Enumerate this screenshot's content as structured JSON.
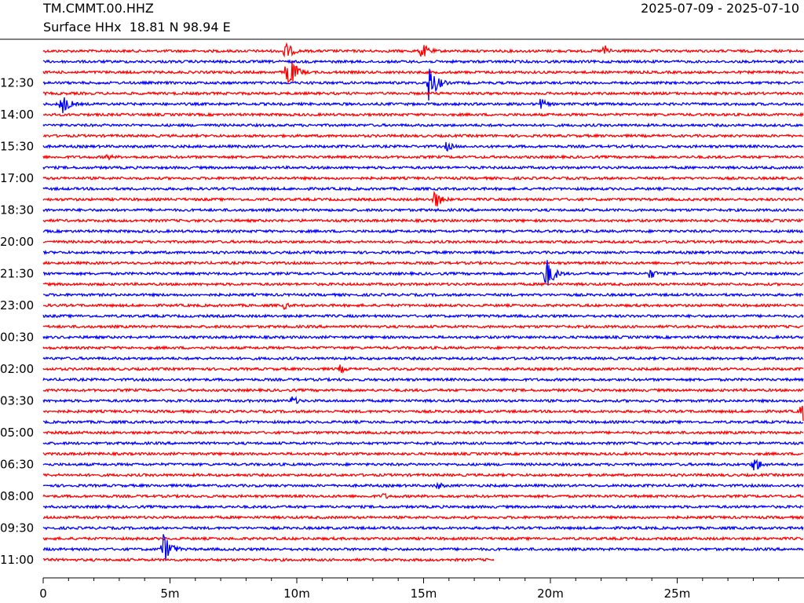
{
  "header": {
    "station": "TM.CMMT.00.HHZ",
    "date_range": "2025-07-09 - 2025-07-10",
    "subtitle": "Surface HHx  18.81 N 98.94 E"
  },
  "colors": {
    "odd": "#ff0000",
    "even": "#0000ff"
  },
  "chart_data": {
    "type": "line",
    "xlabel": "",
    "ylabel": "",
    "x_range_minutes": [
      0,
      30
    ],
    "x_ticks": [
      "0",
      "5m",
      "10m",
      "15m",
      "20m",
      "25m"
    ],
    "y_ticks": [
      "12:30",
      "14:00",
      "15:30",
      "17:00",
      "18:30",
      "20:00",
      "21:30",
      "23:00",
      "00:30",
      "02:00",
      "03:30",
      "05:00",
      "06:30",
      "08:00",
      "09:30",
      "11:00"
    ],
    "rows": 49,
    "last_row_end_minute": 17.8,
    "events": [
      {
        "row": 0,
        "minute": 9.5,
        "amp": 14
      },
      {
        "row": 0,
        "minute": 14.9,
        "amp": 12
      },
      {
        "row": 0,
        "minute": 22.1,
        "amp": 9
      },
      {
        "row": 2,
        "minute": 9.6,
        "amp": 28
      },
      {
        "row": 3,
        "minute": 15.2,
        "amp": 26
      },
      {
        "row": 5,
        "minute": 0.7,
        "amp": 16
      },
      {
        "row": 5,
        "minute": 19.6,
        "amp": 8
      },
      {
        "row": 9,
        "minute": 15.9,
        "amp": 7
      },
      {
        "row": 10,
        "minute": 2.5,
        "amp": 5
      },
      {
        "row": 14,
        "minute": 15.4,
        "amp": 14
      },
      {
        "row": 21,
        "minute": 19.8,
        "amp": 24
      },
      {
        "row": 21,
        "minute": 23.9,
        "amp": 8
      },
      {
        "row": 24,
        "minute": 9.5,
        "amp": 5
      },
      {
        "row": 30,
        "minute": 11.7,
        "amp": 6
      },
      {
        "row": 33,
        "minute": 9.8,
        "amp": 7
      },
      {
        "row": 34,
        "minute": 29.9,
        "amp": 18
      },
      {
        "row": 39,
        "minute": 28.0,
        "amp": 12
      },
      {
        "row": 41,
        "minute": 15.5,
        "amp": 6
      },
      {
        "row": 42,
        "minute": 13.4,
        "amp": 5
      },
      {
        "row": 47,
        "minute": 4.7,
        "amp": 24
      }
    ]
  }
}
